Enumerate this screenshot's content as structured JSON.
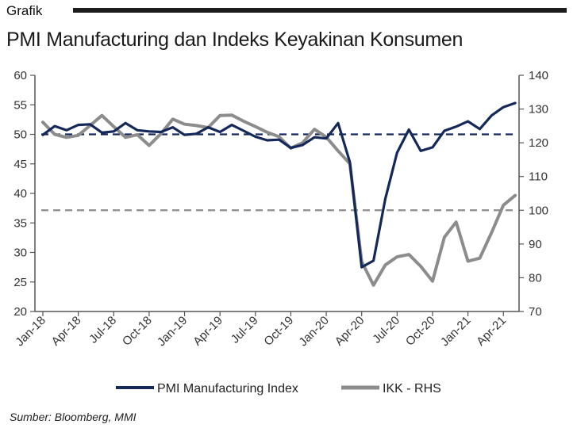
{
  "header": {
    "section_label": "Grafik",
    "title": "PMI Manufacturing dan Indeks Keyakinan Konsumen"
  },
  "source_note": "Sumber: Bloomberg, MMI",
  "colors": {
    "pmi": "#14285a",
    "ikk": "#8c8c8c",
    "axis": "#555555",
    "pmi_ref": "#14285a",
    "ikk_ref": "#8c8c8c"
  },
  "chart_data": {
    "type": "line",
    "title": "PMI Manufacturing dan Indeks Keyakinan Konsumen",
    "grid": false,
    "legend_position": "bottom",
    "x": [
      "Jan-18",
      "Feb-18",
      "Mar-18",
      "Apr-18",
      "May-18",
      "Jun-18",
      "Jul-18",
      "Aug-18",
      "Sep-18",
      "Oct-18",
      "Nov-18",
      "Dec-18",
      "Jan-19",
      "Feb-19",
      "Mar-19",
      "Apr-19",
      "May-19",
      "Jun-19",
      "Jul-19",
      "Aug-19",
      "Sep-19",
      "Oct-19",
      "Nov-19",
      "Dec-19",
      "Jan-20",
      "Feb-20",
      "Mar-20",
      "Apr-20",
      "May-20",
      "Jun-20",
      "Jul-20",
      "Aug-20",
      "Sep-20",
      "Oct-20",
      "Nov-20",
      "Dec-20",
      "Jan-21",
      "Feb-21",
      "Mar-21",
      "Apr-21",
      "May-21"
    ],
    "x_tick_labels": [
      "Jan-18",
      "Apr-18",
      "Jul-18",
      "Oct-18",
      "Jan-19",
      "Apr-19",
      "Jul-19",
      "Oct-19",
      "Jan-20",
      "Apr-20",
      "Jul-20",
      "Oct-20",
      "Jan-21",
      "Apr-21"
    ],
    "y_left": {
      "ylim": [
        20,
        60
      ],
      "ticks": [
        20,
        25,
        30,
        35,
        40,
        45,
        50,
        55,
        60
      ]
    },
    "y_right": {
      "ylim": [
        70,
        140
      ],
      "ticks": [
        70,
        80,
        90,
        100,
        110,
        120,
        130,
        140
      ]
    },
    "series": [
      {
        "name": "PMI Manufacturing Index",
        "axis": "left",
        "style": "solid",
        "values": [
          49.9,
          51.4,
          50.7,
          51.6,
          51.7,
          50.3,
          50.5,
          51.9,
          50.7,
          50.5,
          50.4,
          51.2,
          49.9,
          50.1,
          51.2,
          50.4,
          51.6,
          50.6,
          49.6,
          49.0,
          49.1,
          47.7,
          48.2,
          49.5,
          49.3,
          51.9,
          45.3,
          27.5,
          28.6,
          39.1,
          46.9,
          50.8,
          47.2,
          47.8,
          50.6,
          51.3,
          52.2,
          50.9,
          53.2,
          54.6,
          55.3
        ]
      },
      {
        "name": "IKK - RHS",
        "axis": "right",
        "style": "solid",
        "values": [
          126.1,
          122.5,
          121.6,
          122.2,
          125.1,
          128.1,
          124.8,
          121.6,
          122.4,
          119.2,
          122.7,
          127.0,
          125.5,
          125.1,
          124.5,
          128.1,
          128.2,
          126.4,
          124.8,
          123.1,
          121.8,
          118.4,
          120.0,
          124.0,
          121.7,
          117.6,
          113.8,
          84.8,
          77.8,
          83.8,
          86.2,
          86.9,
          83.4,
          79.0,
          92.0,
          96.5,
          84.9,
          85.8,
          93.4,
          101.5,
          104.4
        ]
      }
    ],
    "reference_lines": [
      {
        "axis": "left",
        "value": 50,
        "style": "dashed"
      },
      {
        "axis": "right",
        "value": 100,
        "style": "dashed"
      }
    ]
  }
}
